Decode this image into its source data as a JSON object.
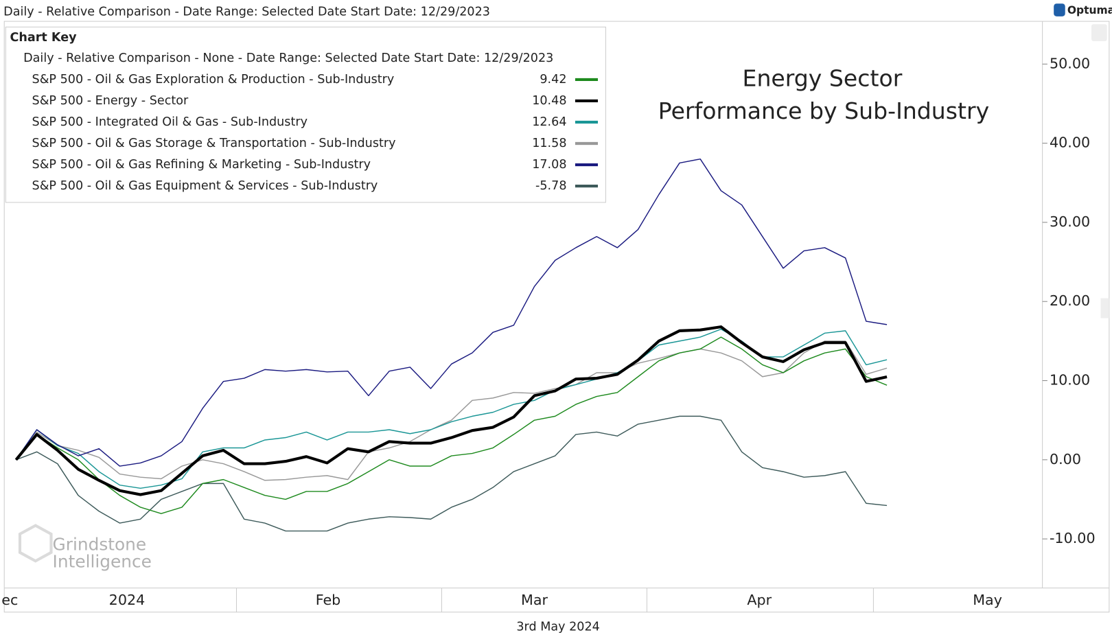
{
  "header": "Daily - Relative Comparison - Date Range: Selected Date  Start Date: 12/29/2023",
  "brand": "Optuma",
  "footer": "3rd May 2024",
  "watermark": [
    "Grindstone",
    "Intelligence"
  ],
  "chart_data": {
    "type": "line",
    "title": "Energy Sector",
    "subtitle": "Performance by Sub-Industry",
    "legend_title": "Chart Key",
    "legend_subtitle": "Daily - Relative Comparison - None - Date Range: Selected Date  Start Date: 12/29/2023",
    "x": [
      0,
      2,
      4,
      6,
      8,
      10,
      12,
      14,
      16,
      18,
      20,
      22,
      24,
      26,
      28,
      30,
      32,
      34,
      36,
      38,
      40,
      42,
      44,
      46,
      48,
      50,
      52,
      54,
      56,
      58,
      60,
      62,
      64,
      66,
      68,
      70,
      72,
      74,
      76,
      78,
      80,
      82,
      84
    ],
    "xlim": [
      -1,
      99
    ],
    "xticks": [
      {
        "value": -0.6,
        "label": "ec"
      },
      {
        "value": 10.7,
        "label": "2024"
      },
      {
        "value": 30.1,
        "label": "Feb"
      },
      {
        "value": 50,
        "label": "Mar"
      },
      {
        "value": 71.7,
        "label": "Apr"
      },
      {
        "value": 93.7,
        "label": "May"
      }
    ],
    "ylim": [
      -16.2,
      55.4
    ],
    "yticks": [
      {
        "value": 50,
        "label": "50.00"
      },
      {
        "value": 40,
        "label": "40.00"
      },
      {
        "value": 30,
        "label": "30.00"
      },
      {
        "value": 20,
        "label": "20.00"
      },
      {
        "value": 10,
        "label": "10.00"
      },
      {
        "value": 0,
        "label": "0.00"
      },
      {
        "value": -10,
        "label": "-10.00"
      }
    ],
    "series": [
      {
        "name": "S&P 500 - Oil & Gas Exploration & Production - Sub-Industry",
        "color": "#1e8a1e",
        "width": 1.4,
        "values": [
          0,
          3.2,
          1.5,
          0,
          -2.5,
          -4.5,
          -6,
          -6.8,
          -6,
          -3,
          -2.5,
          -3.5,
          -4.5,
          -5,
          -4,
          -4,
          -3,
          -1.5,
          0,
          -0.8,
          -0.8,
          0.5,
          0.8,
          1.5,
          3.2,
          5,
          5.5,
          7,
          8,
          8.5,
          10.5,
          12.5,
          13.5,
          14,
          15.5,
          14,
          12,
          11,
          12.5,
          13.5,
          14,
          10.5,
          9.42
        ]
      },
      {
        "name": "S&P 500 - Energy - Sector",
        "color": "#000000",
        "width": 4,
        "values": [
          0,
          3.2,
          1.2,
          -1.2,
          -2.6,
          -3.9,
          -4.4,
          -3.9,
          -1.7,
          0.5,
          1.2,
          -0.5,
          -0.5,
          -0.2,
          0.4,
          -0.4,
          1.4,
          1,
          2.3,
          2.1,
          2.1,
          2.8,
          3.7,
          4.1,
          5.4,
          8.1,
          8.7,
          10.2,
          10.3,
          10.8,
          12.6,
          15,
          16.3,
          16.4,
          16.8,
          14.8,
          13,
          12.4,
          13.9,
          14.8,
          14.8,
          9.9,
          10.48
        ]
      },
      {
        "name": "S&P 500 - Integrated Oil & Gas - Sub-Industry",
        "color": "#1a9696",
        "width": 1.4,
        "values": [
          0,
          3.8,
          1.8,
          0.8,
          -1.5,
          -3.2,
          -3.6,
          -3.2,
          -2.4,
          1,
          1.5,
          1.5,
          2.5,
          2.8,
          3.5,
          2.5,
          3.5,
          3.5,
          3.8,
          3.3,
          3.8,
          4.8,
          5.5,
          6,
          7,
          7.5,
          8.8,
          9.5,
          10.2,
          11,
          12.5,
          14.5,
          15,
          15.5,
          16.5,
          15,
          13,
          13,
          14.5,
          16,
          16.3,
          12,
          12.64
        ]
      },
      {
        "name": "S&P 500 - Oil & Gas Storage & Transportation - Sub-Industry",
        "color": "#999999",
        "width": 1.4,
        "values": [
          0,
          3.5,
          1.8,
          1.2,
          0.3,
          -1.8,
          -2.2,
          -2.4,
          -0.8,
          0,
          -0.5,
          -1.5,
          -2.6,
          -2.5,
          -2.2,
          -2,
          -2.5,
          1,
          1.5,
          2.3,
          3.8,
          5,
          7.5,
          7.8,
          8.5,
          8.4,
          9,
          9.5,
          11,
          11,
          12.2,
          12.8,
          13.5,
          14,
          13.5,
          12.5,
          10.5,
          11,
          13.5,
          15,
          15,
          10.8,
          11.58
        ]
      },
      {
        "name": "S&P 500 - Oil & Gas Refining & Marketing - Sub-Industry",
        "color": "#1a1a80",
        "width": 1.4,
        "values": [
          0,
          3.8,
          1.9,
          0.5,
          1.4,
          -0.8,
          -0.4,
          0.5,
          2.3,
          6.5,
          9.9,
          10.3,
          11.4,
          11.2,
          11.4,
          11.1,
          11.2,
          8.1,
          11.2,
          11.7,
          9,
          12.1,
          13.5,
          16.1,
          17,
          21.9,
          25.2,
          26.8,
          28.2,
          26.8,
          29.1,
          33.5,
          37.5,
          38,
          34,
          32.2,
          28.2,
          24.2,
          26.4,
          26.8,
          25.5,
          17.5,
          17.08
        ]
      },
      {
        "name": "S&P 500 - Oil & Gas Equipment & Services - Sub-Industry",
        "color": "#3d5a5a",
        "width": 1.4,
        "values": [
          0,
          1,
          -0.5,
          -4.5,
          -6.5,
          -8,
          -7.5,
          -5,
          -4,
          -3,
          -3,
          -7.5,
          -8,
          -9,
          -9,
          -9,
          -8,
          -7.5,
          -7.2,
          -7.3,
          -7.5,
          -6,
          -5,
          -3.5,
          -1.5,
          -0.5,
          0.5,
          3.2,
          3.5,
          3,
          4.5,
          5,
          5.5,
          5.5,
          5,
          1,
          -1,
          -1.5,
          -2.2,
          -2,
          -1.5,
          -5.5,
          -5.78
        ]
      }
    ]
  }
}
